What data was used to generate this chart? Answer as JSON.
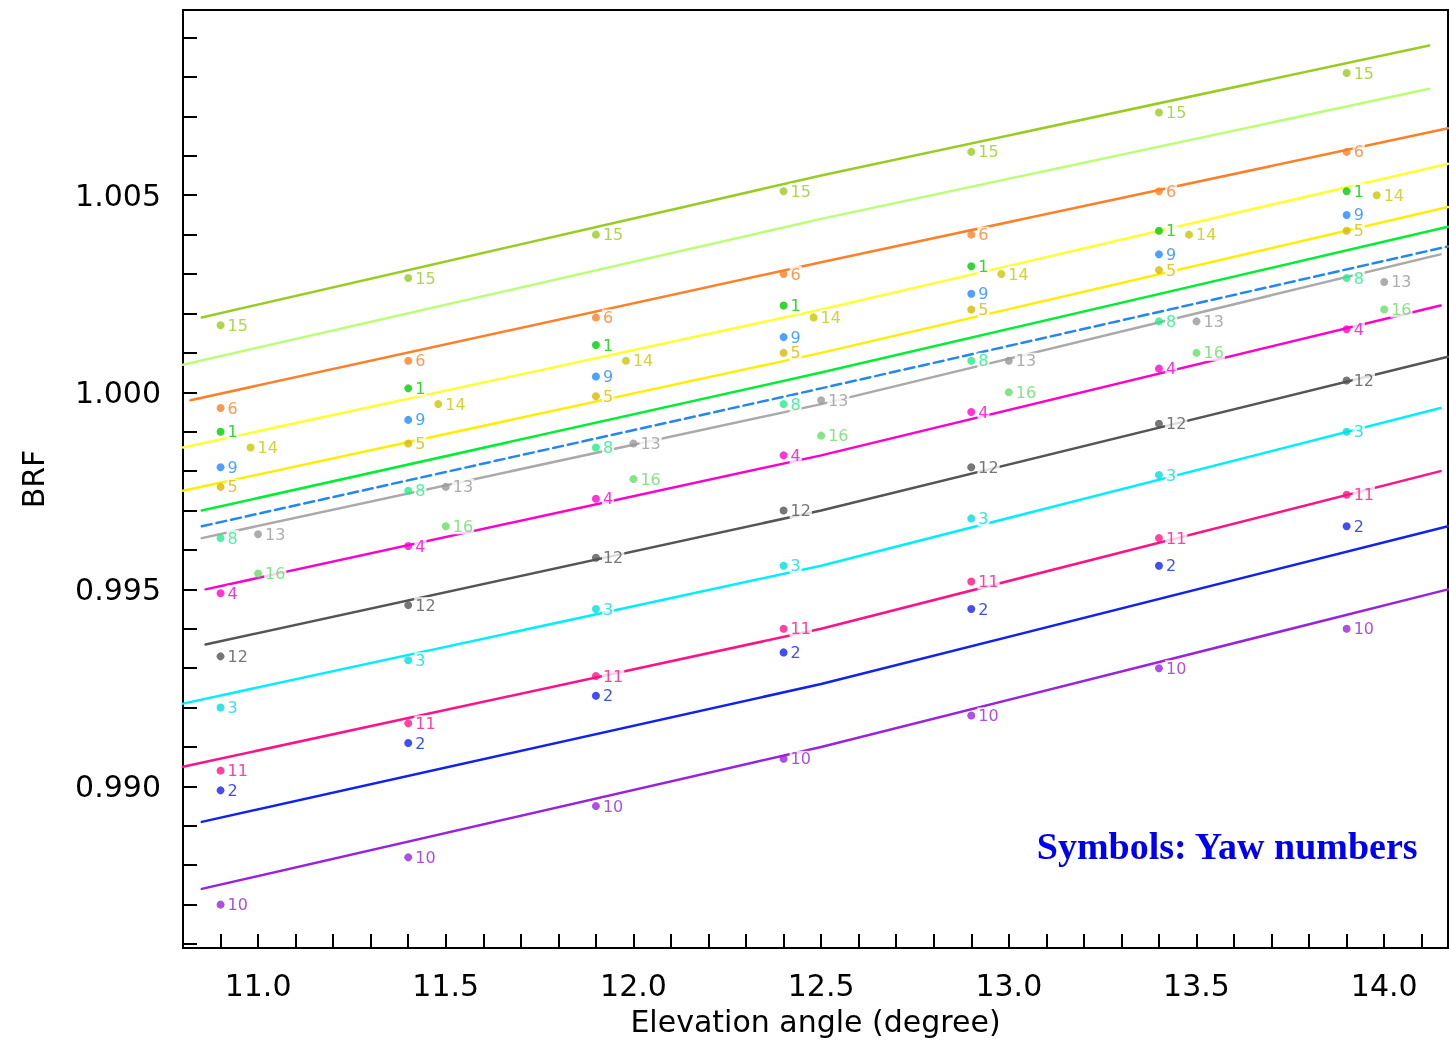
{
  "chart_data": {
    "type": "scatter",
    "xlabel": "Elevation angle (degree)",
    "ylabel": "BRF",
    "annotations": [
      "Symbols: Yaw numbers"
    ],
    "xlim": [
      10.8,
      14.17
    ],
    "ylim": [
      0.9859,
      1.0097
    ],
    "xticks": [
      {
        "value": 10.9,
        "label": null
      },
      {
        "value": 11,
        "label": "11.0"
      },
      {
        "value": 11.1,
        "label": null
      },
      {
        "value": 11.2,
        "label": null
      },
      {
        "value": 11.3,
        "label": null
      },
      {
        "value": 11.4,
        "label": null
      },
      {
        "value": 11.5,
        "label": "11.5"
      },
      {
        "value": 11.6,
        "label": null
      },
      {
        "value": 11.7,
        "label": null
      },
      {
        "value": 11.8,
        "label": null
      },
      {
        "value": 11.9,
        "label": null
      },
      {
        "value": 12,
        "label": "12.0"
      },
      {
        "value": 12.1,
        "label": null
      },
      {
        "value": 12.2,
        "label": null
      },
      {
        "value": 12.3,
        "label": null
      },
      {
        "value": 12.4,
        "label": null
      },
      {
        "value": 12.5,
        "label": "12.5"
      },
      {
        "value": 12.6,
        "label": null
      },
      {
        "value": 12.7,
        "label": null
      },
      {
        "value": 12.8,
        "label": null
      },
      {
        "value": 12.9,
        "label": null
      },
      {
        "value": 13,
        "label": "13.0"
      },
      {
        "value": 13.1,
        "label": null
      },
      {
        "value": 13.2,
        "label": null
      },
      {
        "value": 13.3,
        "label": null
      },
      {
        "value": 13.4,
        "label": null
      },
      {
        "value": 13.5,
        "label": "13.5"
      },
      {
        "value": 13.6,
        "label": null
      },
      {
        "value": 13.7,
        "label": null
      },
      {
        "value": 13.8,
        "label": null
      },
      {
        "value": 13.9,
        "label": null
      },
      {
        "value": 14,
        "label": "14.0"
      },
      {
        "value": 14.1,
        "label": null
      }
    ],
    "yticks": [
      {
        "value": 0.986,
        "label": null
      },
      {
        "value": 0.987,
        "label": null
      },
      {
        "value": 0.988,
        "label": null
      },
      {
        "value": 0.989,
        "label": null
      },
      {
        "value": 0.99,
        "label": "0.990"
      },
      {
        "value": 0.991,
        "label": null
      },
      {
        "value": 0.992,
        "label": null
      },
      {
        "value": 0.993,
        "label": null
      },
      {
        "value": 0.994,
        "label": null
      },
      {
        "value": 0.995,
        "label": "0.995"
      },
      {
        "value": 0.996,
        "label": null
      },
      {
        "value": 0.997,
        "label": null
      },
      {
        "value": 0.998,
        "label": null
      },
      {
        "value": 0.999,
        "label": null
      },
      {
        "value": 1,
        "label": "1.000"
      },
      {
        "value": 1.001,
        "label": null
      },
      {
        "value": 1.002,
        "label": null
      },
      {
        "value": 1.003,
        "label": null
      },
      {
        "value": 1.004,
        "label": null
      },
      {
        "value": 1.005,
        "label": "1.005"
      },
      {
        "value": 1.006,
        "label": null
      },
      {
        "value": 1.007,
        "label": null
      },
      {
        "value": 1.008,
        "label": null
      },
      {
        "value": 1.009,
        "label": null
      }
    ],
    "grid": false,
    "legend": false,
    "marker": "circle",
    "line_style": "solid",
    "x": [
      10.9,
      11.4,
      11.9,
      12.4,
      12.9,
      13.4,
      13.9
    ],
    "series": [
      {
        "type": "line",
        "marker": "none",
        "color": "#99cc22",
        "x": [
          10.85,
          12.5,
          14.12
        ],
        "values": [
          1.0019,
          1.0055,
          1.0088
        ]
      },
      {
        "type": "line",
        "marker": "none",
        "color": "#bbff77",
        "x": [
          10.8,
          12.5,
          14.12
        ],
        "values": [
          1.0007,
          1.0044,
          1.0077
        ]
      },
      {
        "type": "line",
        "marker": "none",
        "color": "#ff7f27",
        "x": [
          10.82,
          12.5,
          14.17
        ],
        "values": [
          0.9998,
          1.0033,
          1.0067
        ]
      },
      {
        "type": "line",
        "marker": "none",
        "color": "#ffff33",
        "x": [
          10.8,
          12.5,
          14.17
        ],
        "values": [
          0.9986,
          1.0021,
          1.0058
        ]
      },
      {
        "type": "line",
        "marker": "none",
        "color": "#ffee00",
        "x": [
          10.8,
          12.5,
          14.17
        ],
        "values": [
          0.9975,
          1.001,
          1.0047
        ]
      },
      {
        "type": "line",
        "marker": "none",
        "color": "#00ee33",
        "x": [
          10.85,
          12.5,
          14.17
        ],
        "values": [
          0.997,
          1.0005,
          1.0042
        ]
      },
      {
        "type": "line",
        "marker": "none",
        "color": "#2288ee",
        "line_style": "dashed",
        "x": [
          10.85,
          12.5,
          14.17
        ],
        "values": [
          0.9966,
          1.0001,
          1.0037
        ]
      },
      {
        "type": "line",
        "marker": "none",
        "color": "#aaaaaa",
        "x": [
          10.85,
          12.5,
          14.15
        ],
        "values": [
          0.9963,
          0.9997,
          1.0035
        ]
      },
      {
        "type": "line",
        "marker": "none",
        "color": "#ff00cc",
        "x": [
          10.86,
          12.5,
          14.15
        ],
        "values": [
          0.995,
          0.9984,
          1.0022
        ]
      },
      {
        "type": "line",
        "marker": "none",
        "color": "#555555",
        "x": [
          10.86,
          12.5,
          14.17
        ],
        "values": [
          0.9936,
          0.997,
          1.0009
        ]
      },
      {
        "type": "line",
        "marker": "none",
        "color": "#00eeff",
        "x": [
          10.8,
          12.5,
          14.15
        ],
        "values": [
          0.9921,
          0.9956,
          0.9996
        ]
      },
      {
        "type": "line",
        "marker": "none",
        "color": "#ff1188",
        "x": [
          10.8,
          12.5,
          14.15
        ],
        "values": [
          0.9905,
          0.994,
          0.998
        ]
      },
      {
        "type": "line",
        "marker": "none",
        "color": "#1122ee",
        "x": [
          10.85,
          12.5,
          14.17
        ],
        "values": [
          0.9891,
          0.9926,
          0.9966
        ]
      },
      {
        "type": "line",
        "marker": "none",
        "color": "#9922dd",
        "x": [
          10.85,
          12.5,
          14.17
        ],
        "values": [
          0.9874,
          0.991,
          0.995
        ]
      },
      {
        "name": "15",
        "color": "#99cc22",
        "values": [
          1.0017,
          1.0029,
          1.004,
          1.0051,
          1.0061,
          1.0071,
          1.0081
        ]
      },
      {
        "name": "6",
        "color": "#ff7f27",
        "values": [
          0.9996,
          1.0008,
          1.0019,
          1.003,
          1.004,
          1.0051,
          1.0061
        ]
      },
      {
        "name": "1",
        "color": "#00cc00",
        "values": [
          0.999,
          1.0001,
          1.0012,
          1.0022,
          1.0032,
          1.0041,
          1.0051
        ]
      },
      {
        "name": "14",
        "color": "#c8c800",
        "x": [
          10.98,
          11.48,
          11.98,
          12.48,
          12.98,
          13.48,
          13.98
        ],
        "values": [
          0.9986,
          0.9997,
          1.0008,
          1.0019,
          1.003,
          1.004,
          1.005
        ]
      },
      {
        "name": "9",
        "color": "#2288ff",
        "values": [
          0.9981,
          0.9993,
          1.0004,
          1.0014,
          1.0025,
          1.0035,
          1.0045
        ]
      },
      {
        "name": "5",
        "color": "#d8b800",
        "values": [
          0.9976,
          0.9987,
          0.9999,
          1.001,
          1.0021,
          1.0031,
          1.0041
        ]
      },
      {
        "name": "13",
        "color": "#999999",
        "x": [
          11.0,
          11.5,
          12.0,
          12.5,
          13.0,
          13.5,
          14.0
        ],
        "values": [
          0.9964,
          0.9976,
          0.9987,
          0.9998,
          1.0008,
          1.0018,
          1.0028
        ]
      },
      {
        "name": "8",
        "color": "#22ee88",
        "values": [
          0.9963,
          0.9975,
          0.9986,
          0.9997,
          1.0008,
          1.0018,
          1.0029
        ]
      },
      {
        "name": "16",
        "color": "#66dd66",
        "x": [
          11.0,
          11.5,
          12.0,
          12.5,
          13.0,
          13.5,
          14.0
        ],
        "values": [
          0.9954,
          0.9966,
          0.9978,
          0.9989,
          1.0,
          1.001,
          1.0021
        ]
      },
      {
        "name": "4",
        "color": "#ff00cc",
        "values": [
          0.9949,
          0.9961,
          0.9973,
          0.9984,
          0.9995,
          1.0006,
          1.0016
        ]
      },
      {
        "name": "12",
        "color": "#555555",
        "values": [
          0.9933,
          0.9946,
          0.9958,
          0.997,
          0.9981,
          0.9992,
          1.0003
        ]
      },
      {
        "name": "3",
        "color": "#00dddd",
        "values": [
          0.992,
          0.9932,
          0.9945,
          0.9956,
          0.9968,
          0.9979,
          0.999
        ]
      },
      {
        "name": "11",
        "color": "#ff1188",
        "values": [
          0.9904,
          0.9916,
          0.9928,
          0.994,
          0.9952,
          0.9963,
          0.9974
        ]
      },
      {
        "name": "2",
        "color": "#1122ee",
        "values": [
          0.9899,
          0.9911,
          0.9923,
          0.9934,
          0.9945,
          0.9956,
          0.9966
        ]
      },
      {
        "name": "10",
        "color": "#9922dd",
        "values": [
          0.987,
          0.9882,
          0.9895,
          0.9907,
          0.9918,
          0.993,
          0.994
        ]
      }
    ]
  }
}
